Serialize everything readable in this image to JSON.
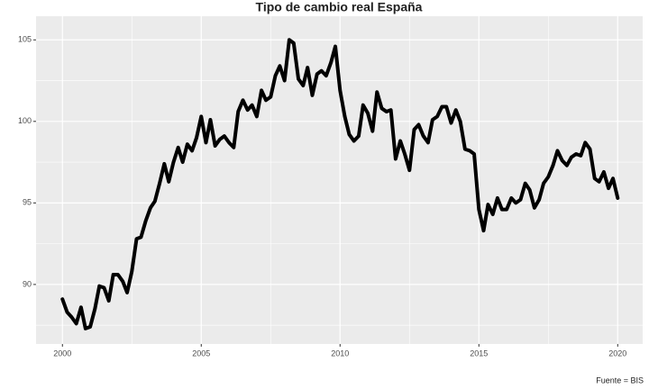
{
  "chart_data": {
    "type": "line",
    "title": "Tipo de cambio real España",
    "caption": "Fuente = BIS",
    "x": [
      2000,
      2000.17,
      2000.33,
      2000.5,
      2000.67,
      2000.83,
      2001,
      2001.17,
      2001.33,
      2001.5,
      2001.67,
      2001.83,
      2002,
      2002.17,
      2002.33,
      2002.5,
      2002.67,
      2002.83,
      2003,
      2003.17,
      2003.33,
      2003.5,
      2003.67,
      2003.83,
      2004,
      2004.17,
      2004.33,
      2004.5,
      2004.67,
      2004.83,
      2005,
      2005.17,
      2005.33,
      2005.5,
      2005.67,
      2005.83,
      2006,
      2006.17,
      2006.33,
      2006.5,
      2006.67,
      2006.83,
      2007,
      2007.17,
      2007.33,
      2007.5,
      2007.67,
      2007.83,
      2008,
      2008.17,
      2008.33,
      2008.5,
      2008.67,
      2008.83,
      2009,
      2009.17,
      2009.33,
      2009.5,
      2009.67,
      2009.83,
      2010,
      2010.17,
      2010.33,
      2010.5,
      2010.67,
      2010.83,
      2011,
      2011.17,
      2011.33,
      2011.5,
      2011.67,
      2011.83,
      2012,
      2012.17,
      2012.33,
      2012.5,
      2012.67,
      2012.83,
      2013,
      2013.17,
      2013.33,
      2013.5,
      2013.67,
      2013.83,
      2014,
      2014.17,
      2014.33,
      2014.5,
      2014.67,
      2014.83,
      2015,
      2015.17,
      2015.33,
      2015.5,
      2015.67,
      2015.83,
      2016,
      2016.17,
      2016.33,
      2016.5,
      2016.67,
      2016.83,
      2017,
      2017.17,
      2017.33,
      2017.5,
      2017.67,
      2017.83,
      2018,
      2018.17,
      2018.33,
      2018.5,
      2018.67,
      2018.83,
      2019,
      2019.17,
      2019.33,
      2019.5,
      2019.67,
      2019.83,
      2020
    ],
    "series": [
      {
        "color": "#000000",
        "values": [
          89.1,
          88.3,
          88.0,
          87.6,
          88.6,
          87.3,
          87.4,
          88.5,
          89.9,
          89.8,
          89.0,
          90.6,
          90.6,
          90.2,
          89.5,
          90.8,
          92.8,
          92.9,
          93.9,
          94.7,
          95.1,
          96.2,
          97.4,
          96.3,
          97.5,
          98.4,
          97.5,
          98.6,
          98.2,
          99.0,
          100.3,
          98.7,
          100.1,
          98.5,
          98.9,
          99.1,
          98.7,
          98.4,
          100.6,
          101.3,
          100.7,
          101.0,
          100.3,
          101.9,
          101.3,
          101.5,
          102.8,
          103.4,
          102.5,
          105.0,
          104.8,
          102.6,
          102.2,
          103.3,
          101.6,
          102.9,
          103.1,
          102.8,
          103.6,
          104.6,
          101.9,
          100.3,
          99.2,
          98.8,
          99.1,
          101.0,
          100.5,
          99.4,
          101.8,
          100.8,
          100.6,
          100.7,
          97.7,
          98.8,
          98.0,
          97.0,
          99.5,
          99.8,
          99.1,
          98.7,
          100.1,
          100.3,
          100.9,
          100.9,
          99.9,
          100.7,
          100.0,
          98.3,
          98.2,
          98.0,
          94.6,
          93.3,
          94.9,
          94.3,
          95.3,
          94.6,
          94.6,
          95.3,
          95.0,
          95.2,
          96.2,
          95.8,
          94.7,
          95.2,
          96.2,
          96.6,
          97.3,
          98.2,
          97.6,
          97.3,
          97.8,
          98.0,
          97.9,
          98.7,
          98.3,
          96.5,
          96.3,
          96.9,
          95.9,
          96.5,
          95.3
        ]
      }
    ],
    "xlim": [
      1999.05,
      2020.9
    ],
    "xticks": [
      2000,
      2005,
      2010,
      2015,
      2020
    ],
    "ylim": [
      86.35,
      106.45
    ],
    "yticks": [
      90,
      95,
      100,
      105
    ],
    "grid": true
  }
}
